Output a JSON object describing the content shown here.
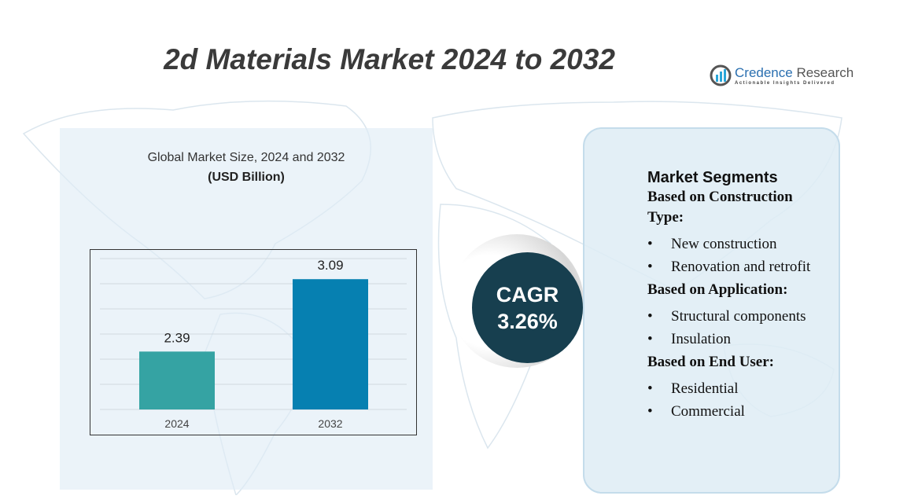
{
  "title": "2d Materials Market 2024 to 2032",
  "logo": {
    "name_a": "Credence",
    "name_b": "Research",
    "tagline": "Actionable Insights Delivered"
  },
  "chart_data": {
    "type": "bar",
    "title": "Global Market Size, 2024 and 2032",
    "unit": "(USD Billion)",
    "categories": [
      "2024",
      "2032"
    ],
    "values": [
      2.39,
      3.09
    ],
    "value_labels": [
      "2.39",
      "3.09"
    ],
    "colors": [
      "#35a3a3",
      "#0680b1"
    ],
    "ylim": [
      1.83,
      3.35
    ],
    "grid": true
  },
  "cagr": {
    "label": "CAGR",
    "value": "3.26%"
  },
  "segments": {
    "heading": "Market Segments",
    "groups": [
      {
        "title": "Based on Construction Type:",
        "items": [
          "New construction",
          "Renovation and retrofit"
        ]
      },
      {
        "title": "Based on Application:",
        "items": [
          "Structural components",
          "Insulation"
        ]
      },
      {
        "title": "Based on End User:",
        "items": [
          "Residential",
          "Commercial"
        ]
      }
    ]
  }
}
